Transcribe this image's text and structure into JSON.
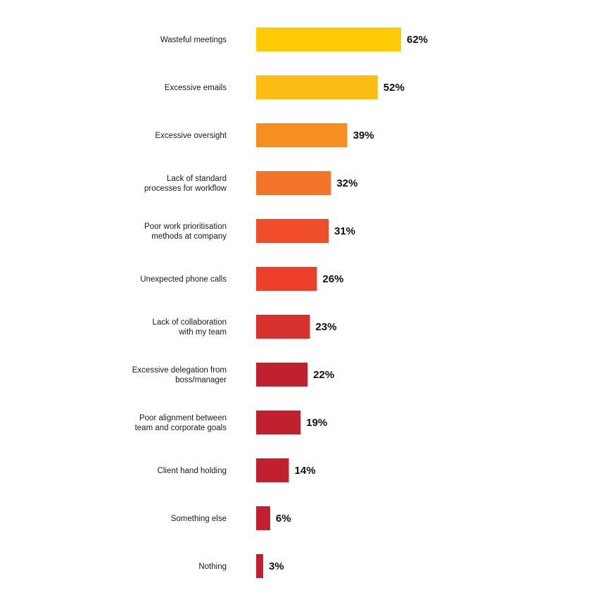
{
  "chart_data": {
    "type": "bar",
    "orientation": "horizontal",
    "categories": [
      "Wasteful meetings",
      "Excessive emails",
      "Excessive oversight",
      "Lack of standard\nprocesses for workflow",
      "Poor work prioritisation\nmethods at company",
      "Unexpected phone calls",
      "Lack of collaboration\nwith my team",
      "Excessive delegation from\nboss/manager",
      "Poor alignment between\nteam and corporate goals",
      "Client hand holding",
      "Something else",
      "Nothing"
    ],
    "values": [
      62,
      52,
      39,
      32,
      31,
      26,
      23,
      22,
      19,
      14,
      6,
      3
    ],
    "value_labels": [
      "62%",
      "52%",
      "39%",
      "32%",
      "31%",
      "26%",
      "23%",
      "22%",
      "19%",
      "14%",
      "6%",
      "3%"
    ],
    "colors": [
      "#FFCB05",
      "#FDBC13",
      "#F68F22",
      "#F47429",
      "#F04E2A",
      "#EE3F2A",
      "#D9322E",
      "#C1202F",
      "#C1202F",
      "#C1202F",
      "#C1202F",
      "#C1202F"
    ]
  }
}
